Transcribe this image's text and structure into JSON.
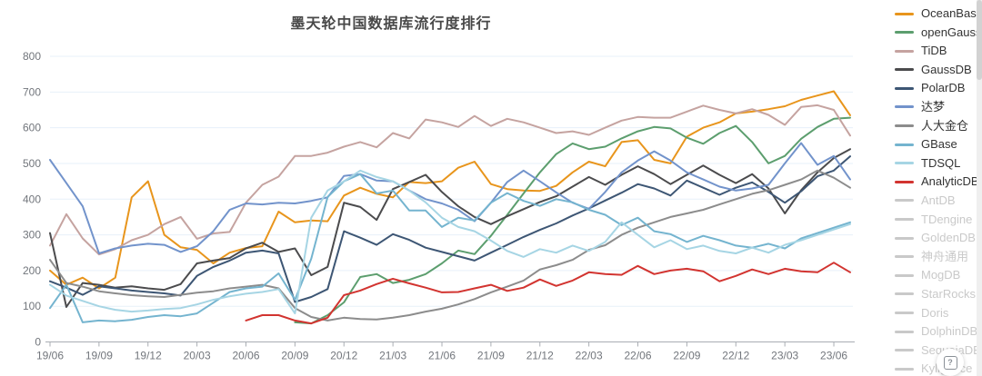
{
  "title": "墨天轮中国数据库流行度排行",
  "help_button": {
    "label": "?"
  },
  "legend": {
    "active": [
      {
        "name": "OceanBase",
        "color": "#E8951C"
      },
      {
        "name": "openGauss",
        "color": "#5C9E6E"
      },
      {
        "name": "TiDB",
        "color": "#C5A3A0"
      },
      {
        "name": "GaussDB",
        "color": "#4B4B4D"
      },
      {
        "name": "PolarDB",
        "color": "#3D5674"
      },
      {
        "name": "达梦",
        "color": "#7293CB"
      },
      {
        "name": "人大金仓",
        "color": "#8C8C8C"
      },
      {
        "name": "GBase",
        "color": "#74B4CF"
      },
      {
        "name": "TDSQL",
        "color": "#A6D5E4"
      },
      {
        "name": "AnalyticDB",
        "color": "#D23430"
      }
    ],
    "disabled": [
      {
        "name": "AntDB"
      },
      {
        "name": "TDengine"
      },
      {
        "name": "GoldenDB"
      },
      {
        "name": "神舟通用"
      },
      {
        "name": "MogDB"
      },
      {
        "name": "StarRocks"
      },
      {
        "name": "Doris"
      },
      {
        "name": "DolphinDB"
      },
      {
        "name": "SequoiaDB"
      },
      {
        "name": "Kyligence"
      }
    ],
    "disabled_color": "#C9C9C9"
  },
  "chart_data": {
    "type": "line",
    "title": "墨天轮中国数据库流行度排行",
    "xlabel": "",
    "ylabel": "",
    "ylim": [
      0,
      800
    ],
    "y_ticks": [
      0,
      100,
      200,
      300,
      400,
      500,
      600,
      700,
      800
    ],
    "grid": true,
    "legend_position": "right",
    "x_tick_labels": [
      "19/06",
      "19/09",
      "19/12",
      "20/03",
      "20/06",
      "20/09",
      "20/12",
      "21/03",
      "21/06",
      "21/09",
      "21/12",
      "22/03",
      "22/06",
      "22/09",
      "22/12",
      "23/03",
      "23/06"
    ],
    "x": [
      "19/06",
      "19/07",
      "19/08",
      "19/09",
      "19/10",
      "19/11",
      "19/12",
      "20/01",
      "20/02",
      "20/03",
      "20/04",
      "20/05",
      "20/06",
      "20/07",
      "20/08",
      "20/09",
      "20/10",
      "20/11",
      "20/12",
      "21/01",
      "21/02",
      "21/03",
      "21/04",
      "21/05",
      "21/06",
      "21/07",
      "21/08",
      "21/09",
      "21/10",
      "21/11",
      "21/12",
      "22/01",
      "22/02",
      "22/03",
      "22/04",
      "22/05",
      "22/06",
      "22/07",
      "22/08",
      "22/09",
      "22/10",
      "22/11",
      "22/12",
      "23/01",
      "23/02",
      "23/03",
      "23/04",
      "23/05",
      "23/06",
      "23/07"
    ],
    "series": [
      {
        "name": "OceanBase",
        "color": "#E8951C",
        "values": [
          200,
          160,
          180,
          150,
          180,
          405,
          450,
          300,
          265,
          258,
          220,
          250,
          263,
          268,
          365,
          335,
          340,
          338,
          410,
          432,
          415,
          405,
          448,
          445,
          450,
          488,
          505,
          442,
          428,
          424,
          423,
          437,
          475,
          505,
          492,
          560,
          565,
          510,
          500,
          575,
          600,
          615,
          640,
          645,
          652,
          660,
          678,
          690,
          702,
          635
        ]
      },
      {
        "name": "openGauss",
        "color": "#5C9E6E",
        "values": [
          null,
          null,
          null,
          null,
          null,
          null,
          null,
          null,
          null,
          null,
          null,
          null,
          null,
          null,
          null,
          55,
          52,
          75,
          111,
          182,
          190,
          165,
          174,
          190,
          220,
          256,
          246,
          297,
          356,
          416,
          475,
          526,
          556,
          540,
          547,
          570,
          590,
          602,
          598,
          572,
          555,
          585,
          605,
          560,
          500,
          521,
          569,
          602,
          625,
          628
        ]
      },
      {
        "name": "TiDB",
        "color": "#C5A3A0",
        "values": [
          270,
          358,
          290,
          245,
          260,
          285,
          300,
          330,
          350,
          289,
          304,
          308,
          390,
          440,
          463,
          521,
          521,
          530,
          547,
          560,
          545,
          585,
          570,
          623,
          615,
          602,
          633,
          605,
          625,
          615,
          600,
          585,
          590,
          580,
          600,
          620,
          630,
          628,
          628,
          645,
          662,
          650,
          640,
          652,
          636,
          608,
          658,
          663,
          650,
          578
        ]
      },
      {
        "name": "GaussDB",
        "color": "#4B4B4D",
        "values": [
          305,
          98,
          165,
          160,
          152,
          156,
          150,
          146,
          162,
          220,
          228,
          235,
          262,
          278,
          252,
          262,
          187,
          210,
          390,
          378,
          342,
          428,
          448,
          468,
          420,
          380,
          350,
          330,
          352,
          372,
          392,
          408,
          435,
          462,
          440,
          468,
          492,
          470,
          442,
          468,
          494,
          468,
          445,
          470,
          430,
          360,
          425,
          475,
          515,
          540
        ]
      },
      {
        "name": "PolarDB",
        "color": "#3D5674",
        "values": [
          170,
          152,
          132,
          156,
          150,
          144,
          140,
          136,
          130,
          185,
          210,
          228,
          250,
          256,
          248,
          112,
          126,
          148,
          310,
          292,
          272,
          302,
          286,
          264,
          252,
          240,
          228,
          250,
          272,
          294,
          314,
          332,
          354,
          374,
          396,
          418,
          442,
          430,
          410,
          452,
          432,
          412,
          432,
          447,
          420,
          390,
          422,
          464,
          480,
          520
        ]
      },
      {
        "name": "达梦",
        "color": "#7293CB",
        "values": [
          510,
          445,
          380,
          248,
          262,
          270,
          275,
          272,
          252,
          268,
          310,
          370,
          388,
          385,
          390,
          388,
          395,
          405,
          465,
          470,
          452,
          450,
          424,
          400,
          388,
          370,
          338,
          390,
          448,
          480,
          450,
          419,
          390,
          373,
          420,
          475,
          508,
          534,
          508,
          475,
          455,
          435,
          424,
          430,
          440,
          500,
          557,
          496,
          521,
          455
        ]
      },
      {
        "name": "人大金仓",
        "color": "#8C8C8C",
        "values": [
          230,
          165,
          155,
          142,
          136,
          131,
          128,
          126,
          132,
          138,
          142,
          150,
          155,
          160,
          150,
          95,
          70,
          60,
          68,
          64,
          63,
          68,
          75,
          85,
          93,
          105,
          120,
          139,
          155,
          172,
          203,
          215,
          230,
          258,
          271,
          300,
          320,
          335,
          350,
          360,
          370,
          385,
          400,
          415,
          425,
          440,
          455,
          480,
          460,
          432
        ]
      },
      {
        "name": "GBase",
        "color": "#74B4CF",
        "values": [
          95,
          160,
          55,
          60,
          58,
          62,
          70,
          75,
          72,
          80,
          110,
          140,
          150,
          155,
          192,
          118,
          233,
          406,
          450,
          470,
          416,
          424,
          368,
          368,
          322,
          348,
          340,
          390,
          417,
          395,
          381,
          400,
          391,
          370,
          356,
          327,
          348,
          310,
          302,
          280,
          297,
          285,
          270,
          264,
          275,
          262,
          290,
          305,
          320,
          335
        ]
      },
      {
        "name": "TDSQL",
        "color": "#A6D5E4",
        "values": [
          160,
          130,
          115,
          100,
          90,
          85,
          88,
          92,
          95,
          105,
          118,
          128,
          135,
          140,
          148,
          80,
          348,
          424,
          450,
          480,
          462,
          450,
          424,
          391,
          348,
          322,
          310,
          284,
          255,
          238,
          260,
          250,
          270,
          255,
          280,
          335,
          300,
          265,
          285,
          260,
          270,
          255,
          248,
          264,
          250,
          272,
          285,
          300,
          315,
          330
        ]
      },
      {
        "name": "AnalyticDB",
        "color": "#D23430",
        "values": [
          null,
          null,
          null,
          null,
          null,
          null,
          null,
          null,
          null,
          null,
          null,
          null,
          60,
          75,
          75,
          60,
          52,
          68,
          131,
          144,
          162,
          177,
          164,
          152,
          139,
          140,
          150,
          160,
          143,
          152,
          175,
          157,
          172,
          195,
          190,
          188,
          213,
          190,
          200,
          205,
          198,
          170,
          185,
          203,
          190,
          205,
          198,
          195,
          222,
          195
        ]
      }
    ],
    "disabled_series": [
      "AntDB",
      "TDengine",
      "GoldenDB",
      "神舟通用",
      "MogDB",
      "StarRocks",
      "Doris",
      "DolphinDB",
      "SequoiaDB",
      "Kyligence"
    ]
  }
}
